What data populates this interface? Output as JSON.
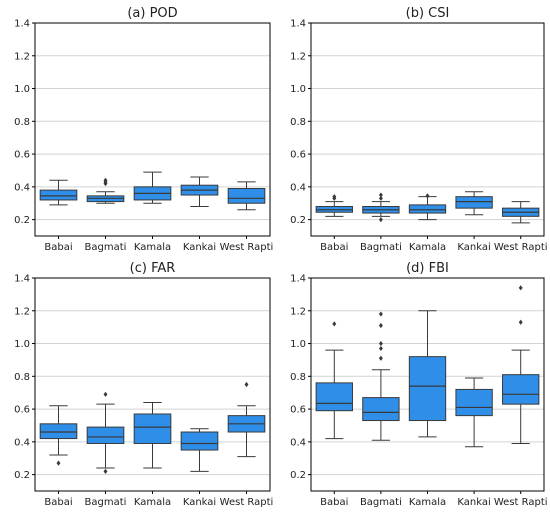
{
  "chart_data": [
    {
      "type": "box",
      "title": "(a) POD",
      "categories": [
        "Babai",
        "Bagmati",
        "Kamala",
        "Kankai",
        "West Rapti"
      ],
      "ylim": [
        0.1,
        1.4
      ],
      "yticks": [
        "0.2",
        "0.4",
        "0.6",
        "0.8",
        "1.0",
        "1.2",
        "1.4"
      ],
      "grid": "horizontal",
      "boxes": [
        {
          "whislo": 0.29,
          "q1": 0.32,
          "med": 0.345,
          "q3": 0.38,
          "whishi": 0.44,
          "fliers": []
        },
        {
          "whislo": 0.3,
          "q1": 0.31,
          "med": 0.33,
          "q3": 0.345,
          "whishi": 0.37,
          "fliers": [
            0.42,
            0.43,
            0.44
          ]
        },
        {
          "whislo": 0.3,
          "q1": 0.32,
          "med": 0.36,
          "q3": 0.4,
          "whishi": 0.49,
          "fliers": []
        },
        {
          "whislo": 0.28,
          "q1": 0.35,
          "med": 0.38,
          "q3": 0.41,
          "whishi": 0.46,
          "fliers": []
        },
        {
          "whislo": 0.26,
          "q1": 0.3,
          "med": 0.33,
          "q3": 0.39,
          "whishi": 0.43,
          "fliers": []
        }
      ]
    },
    {
      "type": "box",
      "title": "(b) CSI",
      "categories": [
        "Babai",
        "Bagmati",
        "Kamala",
        "Kankai",
        "West Rapti"
      ],
      "ylim": [
        0.1,
        1.4
      ],
      "yticks": [
        "0.2",
        "0.4",
        "0.6",
        "0.8",
        "1.0",
        "1.2",
        "1.4"
      ],
      "grid": "horizontal",
      "boxes": [
        {
          "whislo": 0.22,
          "q1": 0.245,
          "med": 0.26,
          "q3": 0.28,
          "whishi": 0.31,
          "fliers": [
            0.33,
            0.34
          ]
        },
        {
          "whislo": 0.22,
          "q1": 0.24,
          "med": 0.26,
          "q3": 0.28,
          "whishi": 0.31,
          "fliers": [
            0.2,
            0.33,
            0.35
          ]
        },
        {
          "whislo": 0.2,
          "q1": 0.24,
          "med": 0.26,
          "q3": 0.29,
          "whishi": 0.34,
          "fliers": [
            0.345
          ]
        },
        {
          "whislo": 0.23,
          "q1": 0.27,
          "med": 0.31,
          "q3": 0.34,
          "whishi": 0.37,
          "fliers": []
        },
        {
          "whislo": 0.18,
          "q1": 0.22,
          "med": 0.245,
          "q3": 0.27,
          "whishi": 0.31,
          "fliers": []
        }
      ]
    },
    {
      "type": "box",
      "title": "(c) FAR",
      "categories": [
        "Babai",
        "Bagmati",
        "Kamala",
        "Kankai",
        "West Rapti"
      ],
      "ylim": [
        0.1,
        1.4
      ],
      "yticks": [
        "0.2",
        "0.4",
        "0.6",
        "0.8",
        "1.0",
        "1.2",
        "1.4"
      ],
      "grid": "horizontal",
      "boxes": [
        {
          "whislo": 0.32,
          "q1": 0.42,
          "med": 0.46,
          "q3": 0.51,
          "whishi": 0.62,
          "fliers": [
            0.27
          ]
        },
        {
          "whislo": 0.24,
          "q1": 0.39,
          "med": 0.43,
          "q3": 0.49,
          "whishi": 0.63,
          "fliers": [
            0.22,
            0.69
          ]
        },
        {
          "whislo": 0.24,
          "q1": 0.39,
          "med": 0.49,
          "q3": 0.57,
          "whishi": 0.64,
          "fliers": []
        },
        {
          "whislo": 0.22,
          "q1": 0.35,
          "med": 0.39,
          "q3": 0.46,
          "whishi": 0.48,
          "fliers": []
        },
        {
          "whislo": 0.31,
          "q1": 0.46,
          "med": 0.51,
          "q3": 0.56,
          "whishi": 0.62,
          "fliers": [
            0.75
          ]
        }
      ]
    },
    {
      "type": "box",
      "title": "(d) FBI",
      "categories": [
        "Babai",
        "Bagmati",
        "Kamala",
        "Kankai",
        "West Rapti"
      ],
      "ylim": [
        0.1,
        1.4
      ],
      "yticks": [
        "0.2",
        "0.4",
        "0.6",
        "0.8",
        "1.0",
        "1.2",
        "1.4"
      ],
      "grid": "horizontal",
      "boxes": [
        {
          "whislo": 0.42,
          "q1": 0.59,
          "med": 0.635,
          "q3": 0.76,
          "whishi": 0.96,
          "fliers": [
            1.12
          ]
        },
        {
          "whislo": 0.41,
          "q1": 0.53,
          "med": 0.58,
          "q3": 0.67,
          "whishi": 0.84,
          "fliers": [
            0.91,
            0.97,
            1.0,
            1.11,
            1.18
          ]
        },
        {
          "whislo": 0.43,
          "q1": 0.53,
          "med": 0.74,
          "q3": 0.92,
          "whishi": 1.2,
          "fliers": []
        },
        {
          "whislo": 0.37,
          "q1": 0.56,
          "med": 0.61,
          "q3": 0.72,
          "whishi": 0.79,
          "fliers": []
        },
        {
          "whislo": 0.39,
          "q1": 0.63,
          "med": 0.69,
          "q3": 0.81,
          "whishi": 0.96,
          "fliers": [
            1.13,
            1.34
          ]
        }
      ]
    }
  ]
}
